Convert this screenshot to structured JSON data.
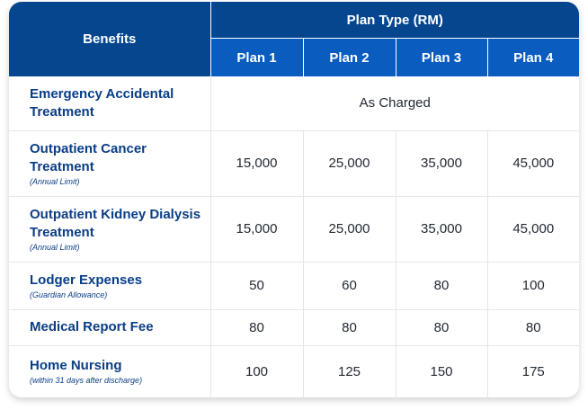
{
  "header": {
    "benefits_label": "Benefits",
    "plan_type_label": "Plan Type (RM)",
    "plans": [
      "Plan 1",
      "Plan 2",
      "Plan 3",
      "Plan 4"
    ]
  },
  "rows": [
    {
      "name": "Emergency Accidental Treatment",
      "note": "",
      "merged_value": "As Charged"
    },
    {
      "name": "Outpatient Cancer Treatment",
      "note": "(Annual Limit)",
      "values": [
        "15,000",
        "25,000",
        "35,000",
        "45,000"
      ]
    },
    {
      "name": "Outpatient Kidney Dialysis Treatment",
      "note": "(Annual Limit)",
      "values": [
        "15,000",
        "25,000",
        "35,000",
        "45,000"
      ]
    },
    {
      "name": "Lodger Expenses",
      "note": "(Guardian Allowance)",
      "values": [
        "50",
        "60",
        "80",
        "100"
      ]
    },
    {
      "name": "Medical Report Fee",
      "note": "",
      "values": [
        "80",
        "80",
        "80",
        "80"
      ]
    },
    {
      "name": "Home Nursing",
      "note": "(within 31 days after discharge)",
      "values": [
        "100",
        "125",
        "150",
        "175"
      ]
    }
  ],
  "colors": {
    "header_dark": "#05468f",
    "header_light": "#0a5cbf",
    "benefit_text": "#0a3e86"
  }
}
